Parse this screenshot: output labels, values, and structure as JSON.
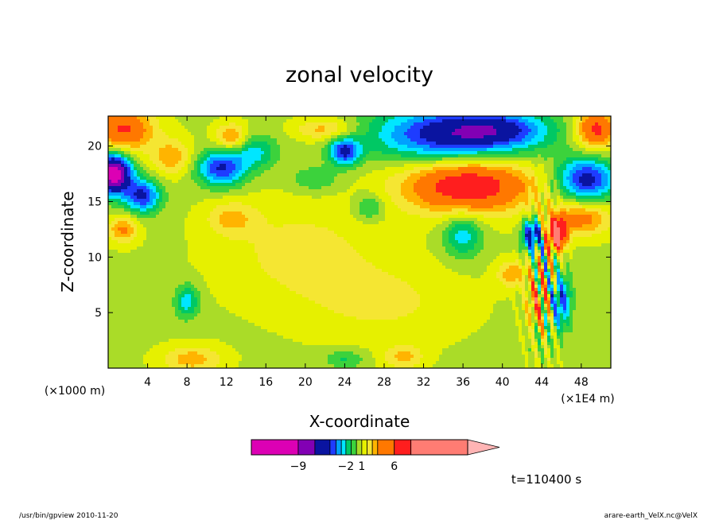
{
  "chart_data": {
    "type": "heatmap",
    "title": "zonal velocity",
    "xlabel": "X-coordinate",
    "ylabel": "Z-coordinate",
    "x_unit_label": "(×1E4 m)",
    "y_unit_label": "(×1000 m)",
    "xlim": [
      0,
      51
    ],
    "ylim": [
      0,
      22.7
    ],
    "x_ticks": [
      4,
      8,
      12,
      16,
      20,
      24,
      28,
      32,
      36,
      40,
      44,
      48
    ],
    "y_ticks": [
      5,
      10,
      15,
      20
    ],
    "colorbar": {
      "levels": [
        -12,
        -9,
        -7,
        -5,
        -4,
        -3,
        -2,
        -1,
        0,
        1,
        2,
        3,
        4,
        6,
        8,
        14
      ],
      "colors": [
        "#dc00b4",
        "#8200b4",
        "#0a14a0",
        "#1e3cff",
        "#00a0ff",
        "#00e6ff",
        "#00c864",
        "#3cd23c",
        "#aadc28",
        "#e6f000",
        "#f5e632",
        "#ffb400",
        "#ff7800",
        "#ff1e1e",
        "#ff7c73"
      ],
      "extend_color": "#ffb4b4",
      "labels": [
        {
          "value": -9,
          "text": "−9"
        },
        {
          "value": -2,
          "text": "−2"
        },
        {
          "value": 1,
          "text": "1"
        },
        {
          "value": 6,
          "text": "6"
        }
      ]
    },
    "annotations": {
      "time": "t=110400 s",
      "footer_left": "/usr/bin/gpview   2010-11-20",
      "footer_right": "arare-earth_VelX.nc@VelX"
    },
    "field": {
      "background": 0.8,
      "features": [
        {
          "cx": 1.5,
          "cz": 21.5,
          "rx": 3.0,
          "rz": 2.0,
          "amp": 5.5
        },
        {
          "cx": 49.5,
          "cz": 21.5,
          "rx": 2.0,
          "rz": 1.8,
          "amp": 6.0
        },
        {
          "cx": 0.5,
          "cz": 17.5,
          "rx": 1.8,
          "rz": 1.8,
          "amp": -11.5
        },
        {
          "cx": 3.5,
          "cz": 15.5,
          "rx": 1.8,
          "rz": 1.5,
          "amp": -6.0
        },
        {
          "cx": 1.5,
          "cz": 12.5,
          "rx": 1.5,
          "rz": 1.2,
          "amp": 3.5
        },
        {
          "cx": 11.5,
          "cz": 18.0,
          "rx": 2.5,
          "rz": 1.6,
          "amp": -6.0
        },
        {
          "cx": 15.0,
          "cz": 19.5,
          "rx": 2.2,
          "rz": 1.5,
          "amp": -3.0
        },
        {
          "cx": 6.5,
          "cz": 19.0,
          "rx": 2.0,
          "rz": 1.6,
          "amp": 3.0
        },
        {
          "cx": 12.5,
          "cz": 20.8,
          "rx": 1.6,
          "rz": 1.2,
          "amp": 3.5
        },
        {
          "cx": 24.0,
          "cz": 19.5,
          "rx": 1.5,
          "rz": 1.2,
          "amp": -6.0
        },
        {
          "cx": 22.0,
          "cz": 21.5,
          "rx": 3.0,
          "rz": 1.0,
          "amp": 2.8
        },
        {
          "cx": 35.0,
          "cz": 21.0,
          "rx": 8.0,
          "rz": 2.5,
          "amp": -7.0
        },
        {
          "cx": 40.0,
          "cz": 21.5,
          "rx": 5.0,
          "rz": 1.5,
          "amp": -3.0
        },
        {
          "cx": 36.5,
          "cz": 16.5,
          "rx": 6.5,
          "rz": 2.5,
          "amp": 7.0
        },
        {
          "cx": 48.5,
          "cz": 17.0,
          "rx": 3.0,
          "rz": 2.0,
          "amp": -6.5
        },
        {
          "cx": 48.0,
          "cz": 13.5,
          "rx": 3.0,
          "rz": 1.5,
          "amp": 4.0
        },
        {
          "cx": 45.5,
          "cz": 12.0,
          "rx": 1.0,
          "rz": 1.4,
          "amp": 8.5
        },
        {
          "cx": 43.0,
          "cz": 12.0,
          "rx": 1.0,
          "rz": 1.4,
          "amp": -7.0
        },
        {
          "cx": 46.0,
          "cz": 6.0,
          "rx": 1.0,
          "rz": 2.5,
          "amp": -5.0
        },
        {
          "cx": 43.5,
          "cz": 6.0,
          "rx": 1.0,
          "rz": 2.0,
          "amp": 3.5
        },
        {
          "cx": 41.0,
          "cz": 8.5,
          "rx": 1.5,
          "rz": 1.2,
          "amp": 3.0
        },
        {
          "cx": 36.0,
          "cz": 12.0,
          "rx": 2.0,
          "rz": 2.0,
          "amp": -3.5
        },
        {
          "cx": 19.5,
          "cz": 10.5,
          "rx": 8.0,
          "rz": 4.5,
          "amp": 1.6
        },
        {
          "cx": 28.0,
          "cz": 6.0,
          "rx": 8.0,
          "rz": 3.5,
          "amp": 1.4
        },
        {
          "cx": 12.5,
          "cz": 13.5,
          "rx": 2.5,
          "rz": 1.5,
          "amp": 2.3
        },
        {
          "cx": 8.5,
          "cz": 0.8,
          "rx": 3.0,
          "rz": 1.2,
          "amp": 2.8
        },
        {
          "cx": 30.0,
          "cz": 1.0,
          "rx": 2.0,
          "rz": 1.0,
          "amp": 2.5
        },
        {
          "cx": 24.0,
          "cz": 0.8,
          "rx": 2.0,
          "rz": 0.8,
          "amp": -2.0
        },
        {
          "cx": 8.0,
          "cz": 6.0,
          "rx": 1.2,
          "rz": 1.5,
          "amp": -3.5
        },
        {
          "cx": 26.5,
          "cz": 14.5,
          "rx": 1.5,
          "rz": 1.2,
          "amp": -2.5
        },
        {
          "cx": 21.0,
          "cz": 17.0,
          "rx": 2.5,
          "rz": 1.2,
          "amp": -1.8
        }
      ]
    }
  }
}
